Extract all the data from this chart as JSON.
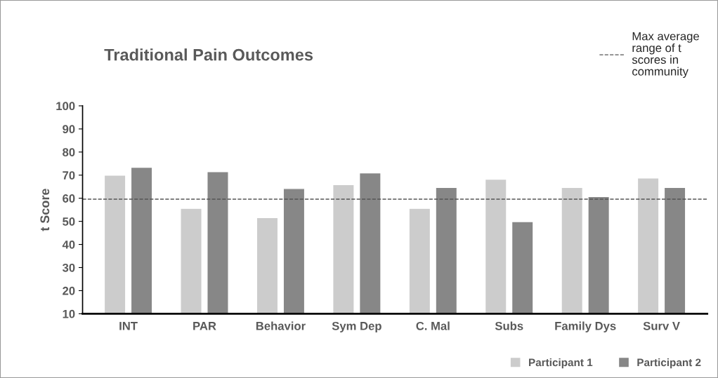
{
  "chart_data": {
    "type": "bar",
    "title": "Traditional Pain Outcomes",
    "ylabel": "t Score",
    "categories": [
      "INT",
      "PAR",
      "Behavior",
      "Sym Dep",
      "C. Mal",
      "Subs",
      "Family Dys",
      "Surv V"
    ],
    "series": [
      {
        "name": "Participant 1",
        "color": "#cccccc",
        "values": [
          70,
          55.6,
          51.6,
          65.9,
          55.6,
          68.2,
          64.7,
          68.8
        ]
      },
      {
        "name": "Participant 2",
        "color": "#878787",
        "values": [
          73.4,
          71.5,
          64.2,
          71.0,
          64.7,
          49.9,
          60.7,
          64.7
        ]
      }
    ],
    "ylim": [
      10,
      100
    ],
    "yticks": [
      10,
      20,
      30,
      40,
      50,
      60,
      70,
      80,
      90,
      100
    ],
    "ref_lines": [
      {
        "axis": "y",
        "value": 59.6,
        "label": "Max average range of t scores in community",
        "color": "#555555",
        "line_style": "dashed"
      }
    ],
    "grid": false,
    "legend": "right"
  }
}
